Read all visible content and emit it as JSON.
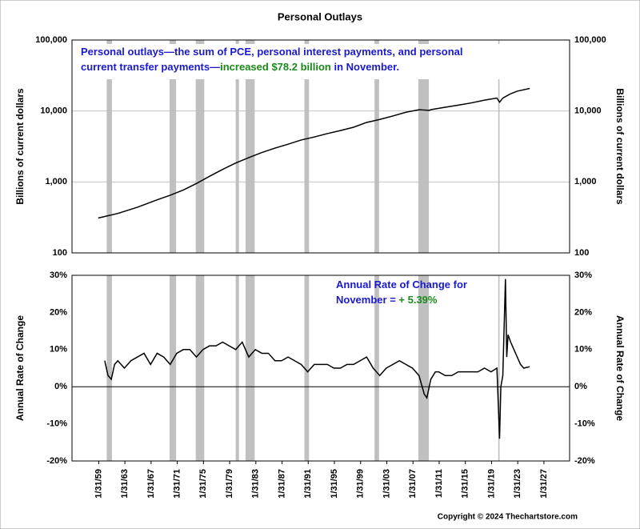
{
  "title": "Personal Outlays",
  "copyright": "Copyright © 2024 Thechartstore.com",
  "chart_data": [
    {
      "type": "line",
      "log_y": true,
      "grid": true,
      "y_label": "Billions of current dollars",
      "annotation": [
        [
          {
            "text": "Personal outlays—the sum of PCE, personal interest payments, and personal",
            "color": "#1a1acc"
          }
        ],
        [
          {
            "text": "current transfer payments—",
            "color": "#1a1acc"
          },
          {
            "text": "increased $78.2 billion",
            "color": "#1a8a1a"
          },
          {
            "text": " in November.",
            "color": "#1a1acc"
          }
        ]
      ],
      "xlim": [
        1955,
        2031
      ],
      "ylim": [
        100,
        100000
      ],
      "yticks": [
        100,
        {
          "value": 1000,
          "label": "1,000"
        },
        {
          "value": 10000,
          "label": "10,000"
        },
        {
          "value": 100000,
          "label": "100,000"
        }
      ],
      "recession_color": "#c0c0c0",
      "recessions": [
        [
          1960.3,
          1961.1
        ],
        [
          1969.9,
          1970.9
        ],
        [
          1973.9,
          1975.2
        ],
        [
          1980.0,
          1980.5
        ],
        [
          1981.5,
          1982.9
        ],
        [
          1990.5,
          1991.2
        ],
        [
          2001.2,
          2001.9
        ],
        [
          2007.9,
          2009.5
        ],
        [
          2020.1,
          2020.3
        ]
      ],
      "series": [
        {
          "color": "#000000",
          "x": [
            1959,
            1962,
            1965,
            1968,
            1970,
            1972,
            1974,
            1976,
            1978,
            1980,
            1982,
            1984,
            1986,
            1988,
            1990,
            1992,
            1994,
            1996,
            1998,
            2000,
            2002,
            2004,
            2006,
            2008,
            2009.5,
            2010,
            2012,
            2014,
            2016,
            2018,
            2019.9,
            2020.3,
            2020.8,
            2022,
            2023,
            2024.9
          ],
          "values": [
            310,
            360,
            440,
            560,
            650,
            770,
            950,
            1200,
            1500,
            1850,
            2200,
            2600,
            3000,
            3400,
            3900,
            4300,
            4800,
            5300,
            5900,
            6900,
            7600,
            8500,
            9600,
            10400,
            10200,
            10500,
            11300,
            12100,
            13000,
            14200,
            15200,
            13300,
            15200,
            17500,
            19000,
            20800
          ]
        }
      ]
    },
    {
      "type": "line",
      "zero_line": true,
      "y_label": "Annual Rate of Change",
      "annotation": [
        [
          {
            "text": "Annual Rate of Change for",
            "color": "#1a1acc"
          }
        ],
        [
          {
            "text": "November = ",
            "color": "#1a1acc"
          },
          {
            "text": "+ 5.39%",
            "color": "#1a8a1a"
          }
        ]
      ],
      "xlim": [
        1955,
        2031
      ],
      "ylim": [
        -20,
        30
      ],
      "xticks": [
        {
          "value": 1959.08,
          "label": "1/31/59"
        },
        {
          "value": 1963.08,
          "label": "1/31/63"
        },
        {
          "value": 1967.08,
          "label": "1/31/67"
        },
        {
          "value": 1971.08,
          "label": "1/31/71"
        },
        {
          "value": 1975.08,
          "label": "1/31/75"
        },
        {
          "value": 1979.08,
          "label": "1/31/79"
        },
        {
          "value": 1983.08,
          "label": "1/31/83"
        },
        {
          "value": 1987.08,
          "label": "1/31/87"
        },
        {
          "value": 1991.08,
          "label": "1/31/91"
        },
        {
          "value": 1995.08,
          "label": "1/31/95"
        },
        {
          "value": 1999.08,
          "label": "1/31/99"
        },
        {
          "value": 2003.08,
          "label": "1/31/03"
        },
        {
          "value": 2007.08,
          "label": "1/31/07"
        },
        {
          "value": 2011.08,
          "label": "1/31/11"
        },
        {
          "value": 2015.08,
          "label": "1/31/15"
        },
        {
          "value": 2019.08,
          "label": "1/31/19"
        },
        {
          "value": 2023.08,
          "label": "1/31/23"
        },
        {
          "value": 2027.08,
          "label": "1/31/27"
        }
      ],
      "yticks": [
        {
          "value": -20,
          "label": "-20%"
        },
        {
          "value": -10,
          "label": "-10%"
        },
        {
          "value": 0,
          "label": "0%"
        },
        {
          "value": 10,
          "label": "10%"
        },
        {
          "value": 20,
          "label": "20%"
        },
        {
          "value": 30,
          "label": "30%"
        }
      ],
      "recession_color": "#c0c0c0",
      "recessions": [
        [
          1960.3,
          1961.1
        ],
        [
          1969.9,
          1970.9
        ],
        [
          1973.9,
          1975.2
        ],
        [
          1980.0,
          1980.5
        ],
        [
          1981.5,
          1982.9
        ],
        [
          1990.5,
          1991.2
        ],
        [
          2001.2,
          2001.9
        ],
        [
          2007.9,
          2009.5
        ],
        [
          2020.1,
          2020.3
        ]
      ],
      "series": [
        {
          "color": "#000000",
          "x": [
            1960,
            1960.5,
            1961,
            1961.5,
            1962,
            1963,
            1964,
            1965,
            1966,
            1967,
            1968,
            1969,
            1970,
            1971,
            1972,
            1973,
            1974,
            1975,
            1976,
            1977,
            1978,
            1979,
            1980,
            1981,
            1982,
            1983,
            1984,
            1985,
            1986,
            1987,
            1988,
            1989,
            1990,
            1991,
            1992,
            1993,
            1994,
            1995,
            1996,
            1997,
            1998,
            1999,
            2000,
            2001,
            2002,
            2003,
            2004,
            2005,
            2006,
            2007,
            2008,
            2008.8,
            2009.2,
            2009.8,
            2010.5,
            2011,
            2012,
            2013,
            2014,
            2015,
            2016,
            2017,
            2018,
            2019,
            2019.9,
            2020.3,
            2020.5,
            2020.8,
            2021.2,
            2021.4,
            2021.6,
            2022,
            2022.5,
            2023,
            2023.5,
            2024,
            2024.9
          ],
          "values": [
            7,
            3,
            2,
            6,
            7,
            5,
            7,
            8,
            9,
            6,
            9,
            8,
            6,
            9,
            10,
            10,
            8,
            10,
            11,
            11,
            12,
            11,
            10,
            12,
            8,
            10,
            9,
            9,
            7,
            7,
            8,
            7,
            6,
            4,
            6,
            6,
            6,
            5,
            5,
            6,
            6,
            7,
            8,
            5,
            3,
            5,
            6,
            7,
            6,
            5,
            3,
            -2,
            -3,
            2,
            4,
            4,
            3,
            3,
            4,
            4,
            4,
            4,
            5,
            4,
            5,
            -14,
            0,
            3,
            29,
            8,
            14,
            12,
            10,
            8,
            6,
            5,
            5.39
          ]
        }
      ]
    }
  ]
}
